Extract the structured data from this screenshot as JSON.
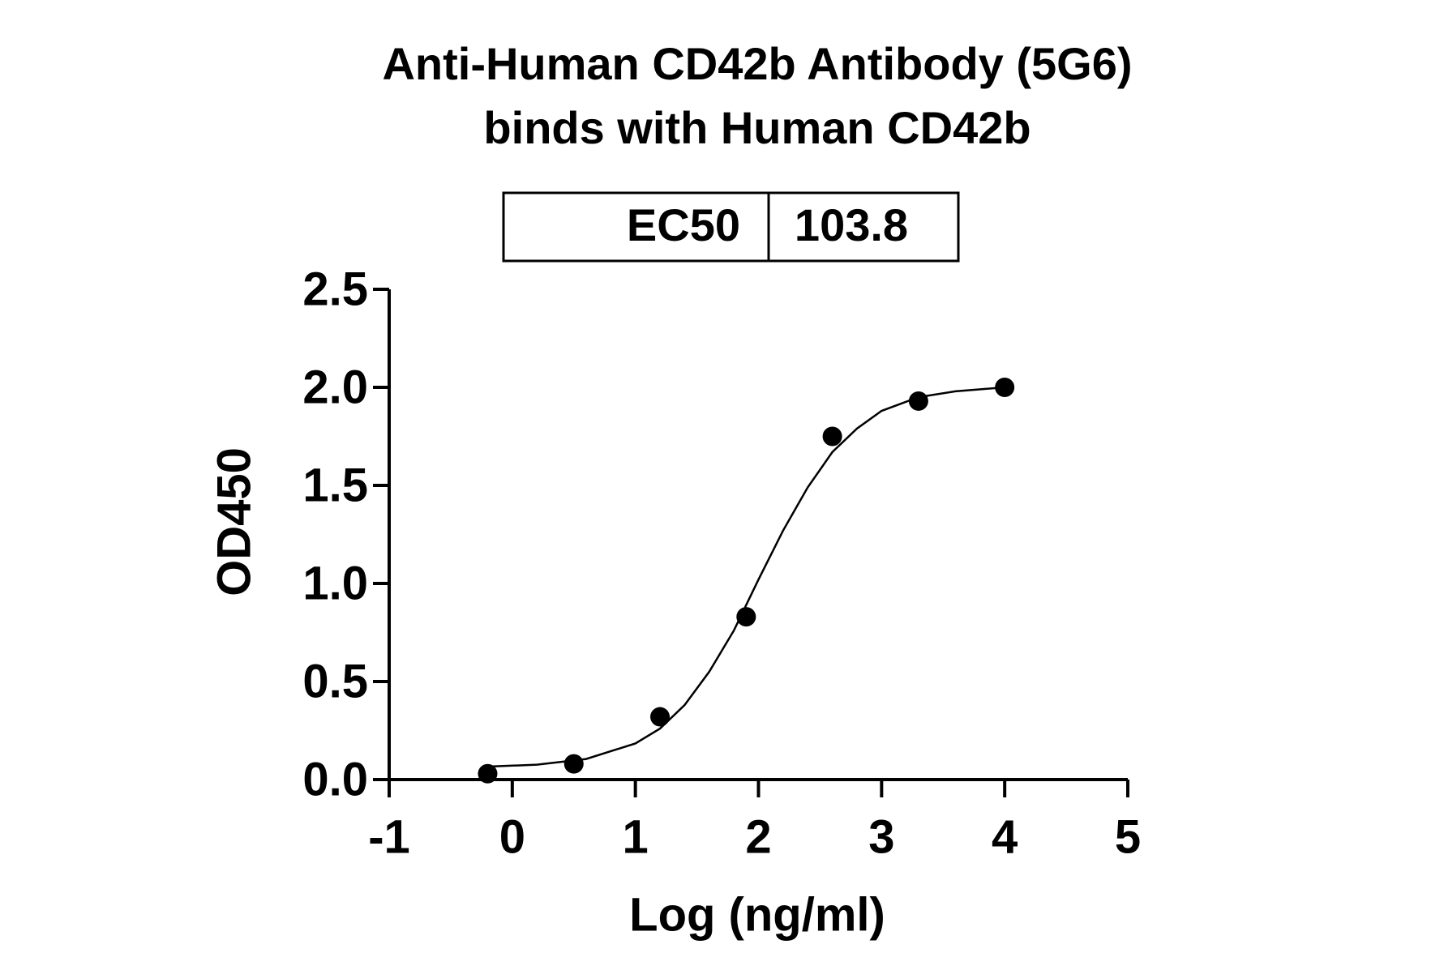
{
  "chart_data": {
    "type": "scatter",
    "title": [
      "Anti-Human CD42b Antibody (5G6)",
      "binds with Human CD42b"
    ],
    "annotation": {
      "label": "EC50",
      "value": 103.8
    },
    "x_label": "Log (ng/ml)",
    "y_label": "OD450",
    "x": [
      -0.2,
      0.5,
      1.2,
      1.9,
      2.6,
      3.3,
      4.0
    ],
    "values": [
      0.03,
      0.08,
      0.32,
      0.83,
      1.75,
      1.93,
      2.0
    ],
    "color": "#000000",
    "curve": {
      "x": [
        -0.2,
        0.2,
        0.6,
        1.0,
        1.2,
        1.4,
        1.6,
        1.8,
        2.0,
        2.2,
        2.4,
        2.6,
        2.8,
        3.0,
        3.3,
        3.6,
        4.0
      ],
      "values": [
        0.066,
        0.076,
        0.105,
        0.184,
        0.26,
        0.38,
        0.55,
        0.76,
        1.02,
        1.27,
        1.49,
        1.67,
        1.79,
        1.88,
        1.95,
        1.98,
        2.0
      ]
    },
    "xlim": [
      -1,
      5
    ],
    "xticks": [
      -1,
      0,
      1,
      2,
      3,
      4,
      5
    ],
    "ylim": [
      0,
      2.5
    ],
    "yticks": [
      {
        "value": 0,
        "label": "0.0"
      },
      0.5,
      {
        "value": 1,
        "label": "1.0"
      },
      1.5,
      {
        "value": 2,
        "label": "2.0"
      },
      2.5
    ]
  }
}
